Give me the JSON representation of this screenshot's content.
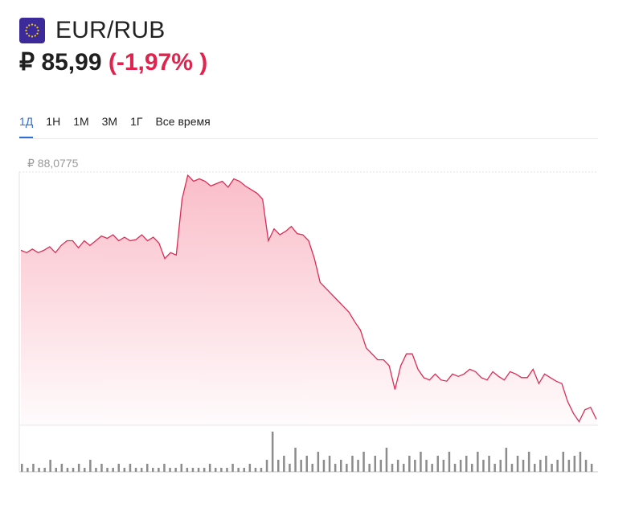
{
  "instrument": {
    "pair": "EUR/RUB",
    "currency_symbol": "₽",
    "price": "85,99",
    "change": "(-1,97% )",
    "flag_icon": "eu-flag-icon"
  },
  "tabs": [
    {
      "label": "1Д",
      "active": true
    },
    {
      "label": "1Н",
      "active": false
    },
    {
      "label": "1М",
      "active": false
    },
    {
      "label": "3М",
      "active": false
    },
    {
      "label": "1Г",
      "active": false
    },
    {
      "label": "Все время",
      "active": false
    }
  ],
  "chart_data": {
    "type": "area",
    "max_label": "₽ 88,0775",
    "colors": {
      "line": "#dc2c55",
      "fill": "#f8a7b6",
      "volume": "#8c8c8c"
    },
    "y_range": [
      85.95,
      88.0775
    ],
    "x_range": [
      0,
      100
    ],
    "series": [
      {
        "x": [
          0,
          1,
          2,
          3,
          4,
          5,
          6,
          7,
          8,
          9,
          10,
          11,
          12,
          13,
          14,
          15,
          16,
          17,
          18,
          19,
          20,
          21,
          22,
          23,
          24,
          25,
          26,
          27,
          28,
          29,
          30,
          31,
          32,
          33,
          34,
          35,
          36,
          37,
          38,
          39,
          40,
          41,
          42,
          43,
          44,
          45,
          46,
          47,
          48,
          49,
          50,
          51,
          52,
          53,
          54,
          55,
          56,
          57,
          58,
          59,
          60,
          61,
          62,
          63,
          64,
          65,
          66,
          67,
          68,
          69,
          70,
          71,
          72,
          73,
          74,
          75,
          76,
          77,
          78,
          79,
          80,
          81,
          82,
          83,
          84,
          85,
          86,
          87,
          88,
          89,
          90,
          91,
          92,
          93,
          94,
          95,
          96,
          97,
          98,
          99,
          100
        ],
        "y": [
          87.42,
          87.4,
          87.43,
          87.4,
          87.42,
          87.45,
          87.4,
          87.46,
          87.5,
          87.5,
          87.44,
          87.5,
          87.46,
          87.5,
          87.54,
          87.52,
          87.55,
          87.5,
          87.53,
          87.5,
          87.51,
          87.55,
          87.5,
          87.53,
          87.48,
          87.35,
          87.4,
          87.38,
          87.85,
          88.05,
          88.0,
          88.02,
          88.0,
          87.96,
          87.98,
          88.0,
          87.95,
          88.02,
          88.0,
          87.96,
          87.93,
          87.9,
          87.85,
          87.5,
          87.6,
          87.55,
          87.58,
          87.62,
          87.56,
          87.55,
          87.5,
          87.35,
          87.15,
          87.1,
          87.05,
          87.0,
          86.95,
          86.9,
          86.82,
          86.75,
          86.6,
          86.55,
          86.5,
          86.5,
          86.45,
          86.25,
          86.45,
          86.55,
          86.55,
          86.42,
          86.35,
          86.33,
          86.38,
          86.33,
          86.32,
          86.38,
          86.36,
          86.38,
          86.42,
          86.4,
          86.35,
          86.33,
          86.4,
          86.36,
          86.33,
          86.4,
          86.38,
          86.35,
          86.35,
          86.42,
          86.3,
          86.38,
          86.35,
          86.32,
          86.3,
          86.15,
          86.05,
          85.98,
          86.08,
          86.1,
          86.0
        ]
      }
    ],
    "volume": [
      2,
      1,
      2,
      1,
      1,
      3,
      1,
      2,
      1,
      1,
      2,
      1,
      3,
      1,
      2,
      1,
      1,
      2,
      1,
      2,
      1,
      1,
      2,
      1,
      1,
      2,
      1,
      1,
      2,
      1,
      1,
      1,
      1,
      2,
      1,
      1,
      1,
      2,
      1,
      1,
      2,
      1,
      1,
      3,
      10,
      3,
      4,
      2,
      6,
      3,
      4,
      2,
      5,
      3,
      4,
      2,
      3,
      2,
      4,
      3,
      5,
      2,
      4,
      3,
      6,
      2,
      3,
      2,
      4,
      3,
      5,
      3,
      2,
      4,
      3,
      5,
      2,
      3,
      4,
      2,
      5,
      3,
      4,
      2,
      3,
      6,
      2,
      4,
      3,
      5,
      2,
      3,
      4,
      2,
      3,
      5,
      3,
      4,
      5,
      3,
      2
    ],
    "grid": false,
    "legend": "none"
  }
}
